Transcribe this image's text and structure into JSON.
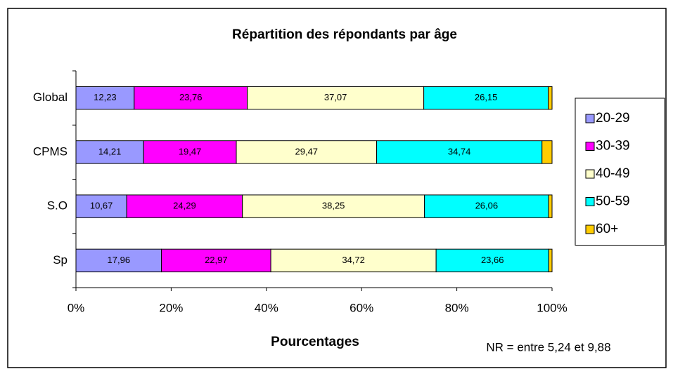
{
  "chart_data": {
    "type": "bar",
    "orientation": "horizontal",
    "stacked": true,
    "title": "Répartition des répondants par âge",
    "x_label": "Pourcentages",
    "annotation": "NR = entre 5,24 et 9,88",
    "categories": [
      "Global",
      "CPMS",
      "S.O",
      "Sp"
    ],
    "series": [
      {
        "name": "20-29",
        "color": "#9999ff",
        "values": [
          12.23,
          14.21,
          10.67,
          17.96
        ],
        "value_labels": [
          "12,23",
          "14,21",
          "10,67",
          "17,96"
        ]
      },
      {
        "name": "30-39",
        "color": "#ff00ff",
        "values": [
          23.76,
          19.47,
          24.29,
          22.97
        ],
        "value_labels": [
          "23,76",
          "19,47",
          "24,29",
          "22,97"
        ]
      },
      {
        "name": "40-49",
        "color": "#ffffcc",
        "values": [
          37.07,
          29.47,
          38.25,
          34.72
        ],
        "value_labels": [
          "37,07",
          "29,47",
          "38,25",
          "34,72"
        ]
      },
      {
        "name": "50-59",
        "color": "#00ffff",
        "values": [
          26.15,
          34.74,
          26.06,
          23.66
        ],
        "value_labels": [
          "26,15",
          "34,74",
          "26,06",
          "23,66"
        ]
      },
      {
        "name": "60+",
        "color": "#ffcc00",
        "values": [
          0.79,
          2.11,
          0.73,
          0.69
        ]
      }
    ],
    "xlim": [
      0,
      100
    ],
    "xticks": [
      {
        "value": 0,
        "label": "0%"
      },
      {
        "value": 20,
        "label": "20%"
      },
      {
        "value": 40,
        "label": "40%"
      },
      {
        "value": 60,
        "label": "60%"
      },
      {
        "value": 80,
        "label": "80%"
      },
      {
        "value": 100,
        "label": "100%"
      }
    ],
    "legend": "right",
    "grid": false
  }
}
